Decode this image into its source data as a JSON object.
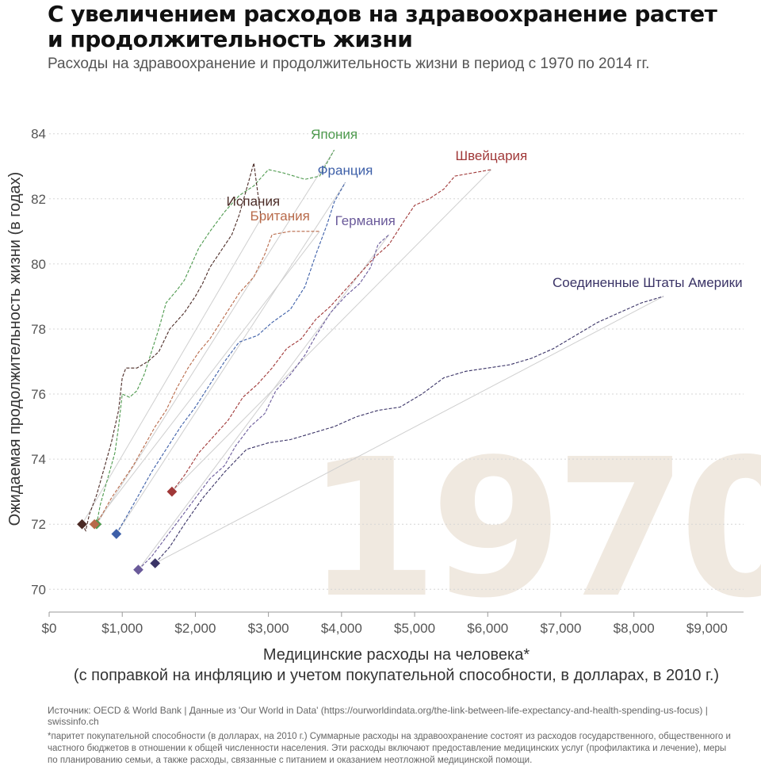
{
  "header": {
    "title": "С увеличением расходов на здравоохранение растет и продолжительность жизни",
    "subtitle": "Расходы на здравоохранение и продолжительность жизни в период с 1970 по 2014 гг."
  },
  "footer": {
    "source": "Источник: OECD & World Bank | Данные из 'Our World in Data' (https://ourworldindata.org/the-link-between-life-expectancy-and-health-spending-us-focus) | swissinfo.ch",
    "note": "*паритет покупательной способности (в долларах, на 2010 г.) Суммарные расходы на здравоохранение состоят из расходов государственного, общественного и частного бюджетов в отношении к общей численности населения. Эти расходы включают предоставление медицинских услуг (профилактика и лечение), меры по планированию семьи, а также расходы, связанные с питанием и оказанием неотложной медицинской помощи."
  },
  "chart_data": {
    "type": "line",
    "watermark": "1970",
    "xlabel": "Медицинские расходы на человека*",
    "xlabel_line2": "(с поправкой на инфляцию и учетом покупательной способности, в долларах, в 2010 г.)",
    "ylabel": "Ожидаемая продолжительность жизни (в годах)",
    "xlim": [
      0,
      9500
    ],
    "ylim": [
      69.3,
      84.7
    ],
    "x_ticks": [
      0,
      1000,
      2000,
      3000,
      4000,
      5000,
      6000,
      7000,
      8000,
      9000
    ],
    "x_tick_labels": [
      "$0",
      "$1,000",
      "$2,000",
      "$3,000",
      "$4,000",
      "$5,000",
      "$6,000",
      "$7,000",
      "$8,000",
      "$9,000"
    ],
    "y_ticks": [
      70,
      72,
      74,
      76,
      78,
      80,
      82,
      84
    ],
    "y_tick_labels": [
      "70",
      "72",
      "74",
      "76",
      "78",
      "80",
      "82",
      "84"
    ],
    "grid": "horizontal",
    "series": [
      {
        "name": "Япония",
        "color": "#4e9a4e",
        "start": [
          650,
          72.0
        ],
        "end": [
          3900,
          83.5
        ],
        "points": [
          [
            650,
            72.0
          ],
          [
            700,
            72.6
          ],
          [
            800,
            73.4
          ],
          [
            900,
            74.2
          ],
          [
            950,
            75.0
          ],
          [
            1000,
            76.0
          ],
          [
            1100,
            75.9
          ],
          [
            1200,
            76.1
          ],
          [
            1300,
            76.6
          ],
          [
            1400,
            77.3
          ],
          [
            1500,
            78.0
          ],
          [
            1600,
            78.8
          ],
          [
            1750,
            79.2
          ],
          [
            1850,
            79.5
          ],
          [
            1950,
            80.0
          ],
          [
            2050,
            80.5
          ],
          [
            2200,
            81.0
          ],
          [
            2400,
            81.6
          ],
          [
            2600,
            82.1
          ],
          [
            2800,
            82.4
          ],
          [
            3000,
            82.9
          ],
          [
            3200,
            82.8
          ],
          [
            3500,
            82.6
          ],
          [
            3700,
            82.7
          ],
          [
            3900,
            83.5
          ]
        ]
      },
      {
        "name": "Испания",
        "color": "#4a2a25",
        "start": [
          450,
          72.0
        ],
        "end": [
          2900,
          81.4
        ],
        "points": [
          [
            450,
            72.0
          ],
          [
            500,
            71.8
          ],
          [
            550,
            72.3
          ],
          [
            650,
            72.9
          ],
          [
            750,
            73.7
          ],
          [
            850,
            74.5
          ],
          [
            950,
            75.5
          ],
          [
            1000,
            76.5
          ],
          [
            1050,
            76.8
          ],
          [
            1200,
            76.8
          ],
          [
            1350,
            77.0
          ],
          [
            1500,
            77.3
          ],
          [
            1650,
            78.0
          ],
          [
            1850,
            78.5
          ],
          [
            2000,
            79.0
          ],
          [
            2100,
            79.4
          ],
          [
            2200,
            79.9
          ],
          [
            2350,
            80.4
          ],
          [
            2500,
            80.9
          ],
          [
            2600,
            81.5
          ],
          [
            2700,
            82.3
          ],
          [
            2800,
            83.1
          ],
          [
            2900,
            81.4
          ]
        ]
      },
      {
        "name": "Франция",
        "color": "#3d5fa8",
        "start": [
          920,
          71.7
        ],
        "end": [
          4050,
          82.5
        ],
        "points": [
          [
            920,
            71.7
          ],
          [
            1050,
            72.2
          ],
          [
            1200,
            72.8
          ],
          [
            1400,
            73.6
          ],
          [
            1600,
            74.3
          ],
          [
            1800,
            75.0
          ],
          [
            2000,
            75.6
          ],
          [
            2200,
            76.3
          ],
          [
            2400,
            77.0
          ],
          [
            2600,
            77.6
          ],
          [
            2850,
            77.8
          ],
          [
            3050,
            78.2
          ],
          [
            3300,
            78.6
          ],
          [
            3500,
            79.3
          ],
          [
            3650,
            80.3
          ],
          [
            3800,
            81.2
          ],
          [
            3900,
            81.9
          ],
          [
            4050,
            82.5
          ]
        ]
      },
      {
        "name": "Британия",
        "color": "#b86a4a",
        "start": [
          620,
          72.0
        ],
        "end": [
          3700,
          81.0
        ],
        "points": [
          [
            620,
            72.0
          ],
          [
            700,
            72.2
          ],
          [
            850,
            72.8
          ],
          [
            1000,
            73.3
          ],
          [
            1150,
            73.8
          ],
          [
            1300,
            74.4
          ],
          [
            1450,
            75.0
          ],
          [
            1600,
            75.5
          ],
          [
            1750,
            76.2
          ],
          [
            1900,
            76.8
          ],
          [
            2050,
            77.3
          ],
          [
            2200,
            77.7
          ],
          [
            2400,
            78.4
          ],
          [
            2600,
            79.1
          ],
          [
            2800,
            79.6
          ],
          [
            2950,
            80.3
          ],
          [
            3050,
            80.9
          ],
          [
            3300,
            81.0
          ],
          [
            3500,
            81.0
          ],
          [
            3700,
            81.0
          ]
        ]
      },
      {
        "name": "Швейцария",
        "color": "#a03838",
        "start": [
          1680,
          73.0
        ],
        "end": [
          6050,
          82.9
        ],
        "points": [
          [
            1680,
            73.0
          ],
          [
            1850,
            73.5
          ],
          [
            2050,
            74.2
          ],
          [
            2250,
            74.7
          ],
          [
            2450,
            75.2
          ],
          [
            2650,
            75.9
          ],
          [
            2850,
            76.3
          ],
          [
            3050,
            76.8
          ],
          [
            3250,
            77.4
          ],
          [
            3450,
            77.7
          ],
          [
            3650,
            78.3
          ],
          [
            3850,
            78.7
          ],
          [
            4050,
            79.2
          ],
          [
            4250,
            79.7
          ],
          [
            4450,
            80.2
          ],
          [
            4650,
            80.6
          ],
          [
            4850,
            81.3
          ],
          [
            5000,
            81.8
          ],
          [
            5200,
            82.0
          ],
          [
            5400,
            82.3
          ],
          [
            5550,
            82.7
          ],
          [
            5800,
            82.8
          ],
          [
            6050,
            82.9
          ]
        ]
      },
      {
        "name": "Германия",
        "color": "#6a5a9a",
        "start": [
          1220,
          70.6
        ],
        "end": [
          4650,
          80.9
        ],
        "points": [
          [
            1220,
            70.6
          ],
          [
            1400,
            71.0
          ],
          [
            1600,
            71.6
          ],
          [
            1800,
            72.2
          ],
          [
            2000,
            72.8
          ],
          [
            2200,
            73.4
          ],
          [
            2400,
            73.8
          ],
          [
            2550,
            74.4
          ],
          [
            2750,
            75.0
          ],
          [
            2950,
            75.4
          ],
          [
            3100,
            76.1
          ],
          [
            3300,
            76.6
          ],
          [
            3500,
            77.2
          ],
          [
            3650,
            77.8
          ],
          [
            3850,
            78.5
          ],
          [
            4050,
            79.0
          ],
          [
            4250,
            79.4
          ],
          [
            4400,
            79.9
          ],
          [
            4500,
            80.6
          ],
          [
            4650,
            80.9
          ]
        ]
      },
      {
        "name": "Соединенные Штаты Америки",
        "color": "#3a3366",
        "start": [
          1450,
          70.8
        ],
        "end": [
          8400,
          79.0
        ],
        "points": [
          [
            1450,
            70.8
          ],
          [
            1650,
            71.3
          ],
          [
            1850,
            72.0
          ],
          [
            2100,
            72.8
          ],
          [
            2400,
            73.6
          ],
          [
            2700,
            74.3
          ],
          [
            3000,
            74.5
          ],
          [
            3300,
            74.6
          ],
          [
            3600,
            74.8
          ],
          [
            3900,
            75.0
          ],
          [
            4200,
            75.3
          ],
          [
            4500,
            75.5
          ],
          [
            4800,
            75.6
          ],
          [
            5100,
            76.0
          ],
          [
            5400,
            76.5
          ],
          [
            5700,
            76.7
          ],
          [
            6000,
            76.8
          ],
          [
            6300,
            76.9
          ],
          [
            6600,
            77.1
          ],
          [
            6900,
            77.4
          ],
          [
            7200,
            77.8
          ],
          [
            7500,
            78.2
          ],
          [
            7800,
            78.5
          ],
          [
            8100,
            78.8
          ],
          [
            8400,
            79.0
          ]
        ]
      }
    ]
  }
}
